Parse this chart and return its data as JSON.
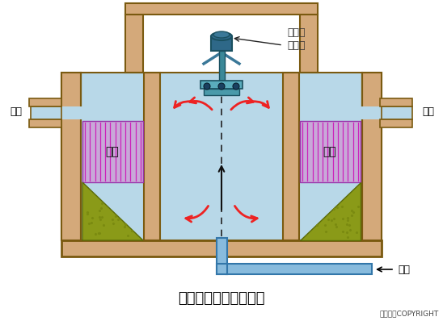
{
  "title": "接触氧化池基本构造图",
  "copyright": "东方仿真COPYRIGHT",
  "label_outflow_left": "出流",
  "label_outflow_right": "出流",
  "label_filler_left": "填料",
  "label_filler_right": "填料",
  "label_aerator": "表面曝\n气装置",
  "label_raw_water": "原水",
  "bg_color": "#FFFFFF",
  "tan_color": "#D4A97A",
  "water_color": "#B8D8E8",
  "filler_color": "#C8A8D8",
  "filler_line_color": "#CC44CC",
  "gravel_color": "#8B9B1A",
  "aerator_teal": "#3A8898",
  "aerator_dark": "#1A5060",
  "pipe_color": "#88BBDD",
  "pipe_edge": "#3377AA",
  "dark_brown": "#7A5A10",
  "arrow_red": "#EE2222",
  "dashed_color": "#222222"
}
